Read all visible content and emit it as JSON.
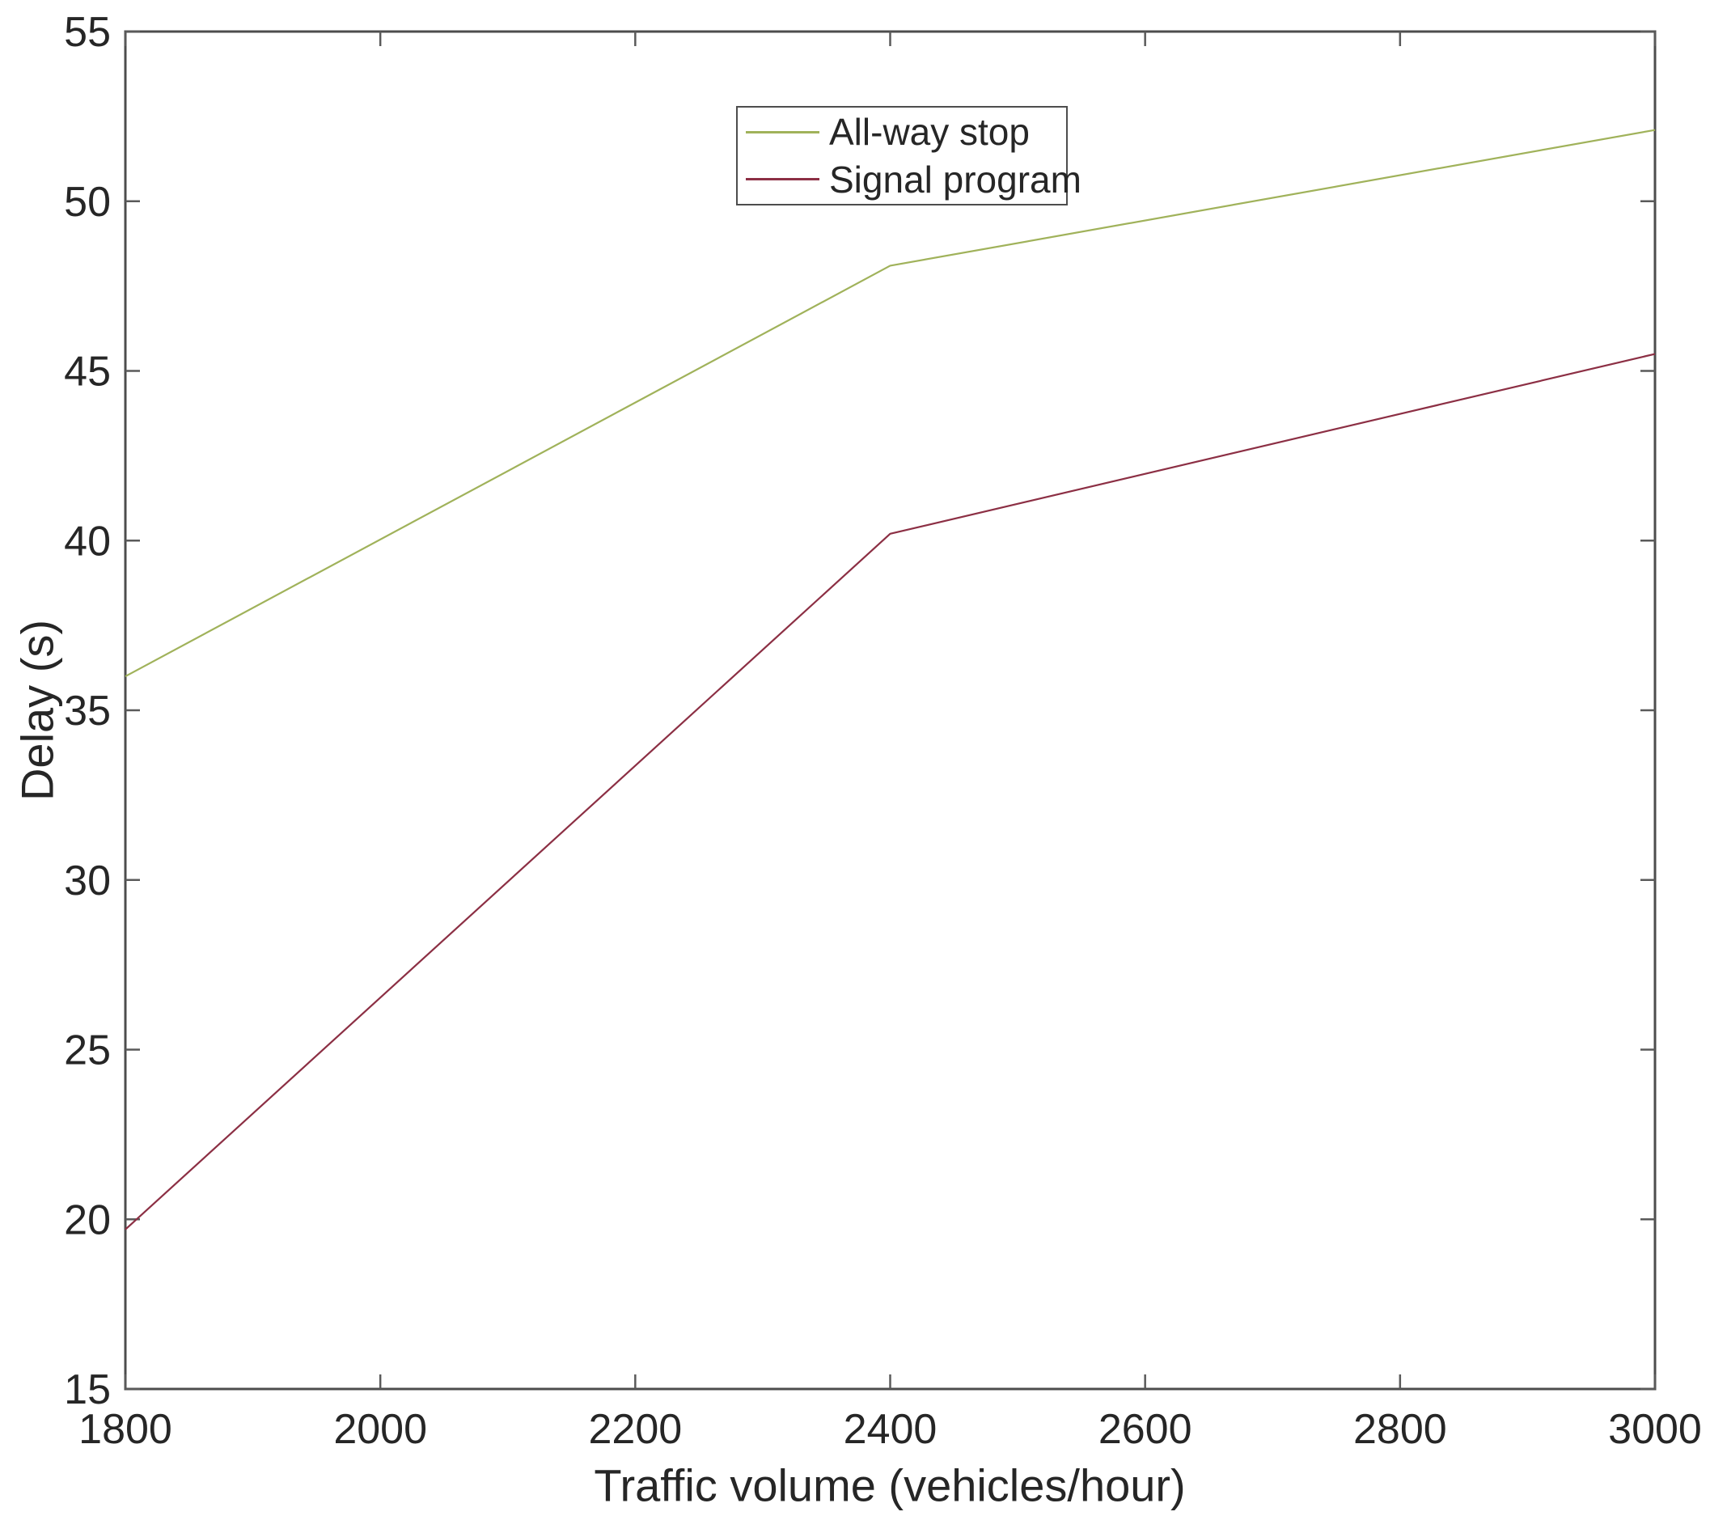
{
  "figure": {
    "background": "#ffffff",
    "axis_color": "#4d4d4d",
    "tick_color": "#5a5a5a",
    "text_color": "#262626"
  },
  "chart_data": {
    "type": "line",
    "title": "",
    "xlabel": "Traffic volume (vehicles/hour)",
    "ylabel": "Delay (s)",
    "xlim": [
      1800,
      3000
    ],
    "ylim": [
      15,
      55
    ],
    "x_ticks": [
      "1800",
      "2000",
      "2200",
      "2400",
      "2600",
      "2800",
      "3000"
    ],
    "y_ticks": [
      "15",
      "20",
      "25",
      "30",
      "35",
      "40",
      "45",
      "50",
      "55"
    ],
    "grid": false,
    "legend": {
      "position": "top-center-inside",
      "entries": [
        "All-way stop",
        "Signal program"
      ]
    },
    "x": [
      1800,
      2400,
      3000
    ],
    "series": [
      {
        "name": "All-way stop",
        "color": "#a0b25a",
        "values": [
          36.0,
          48.1,
          52.1
        ]
      },
      {
        "name": "Signal program",
        "color": "#8c2f44",
        "values": [
          19.7,
          40.2,
          45.5
        ]
      }
    ]
  }
}
